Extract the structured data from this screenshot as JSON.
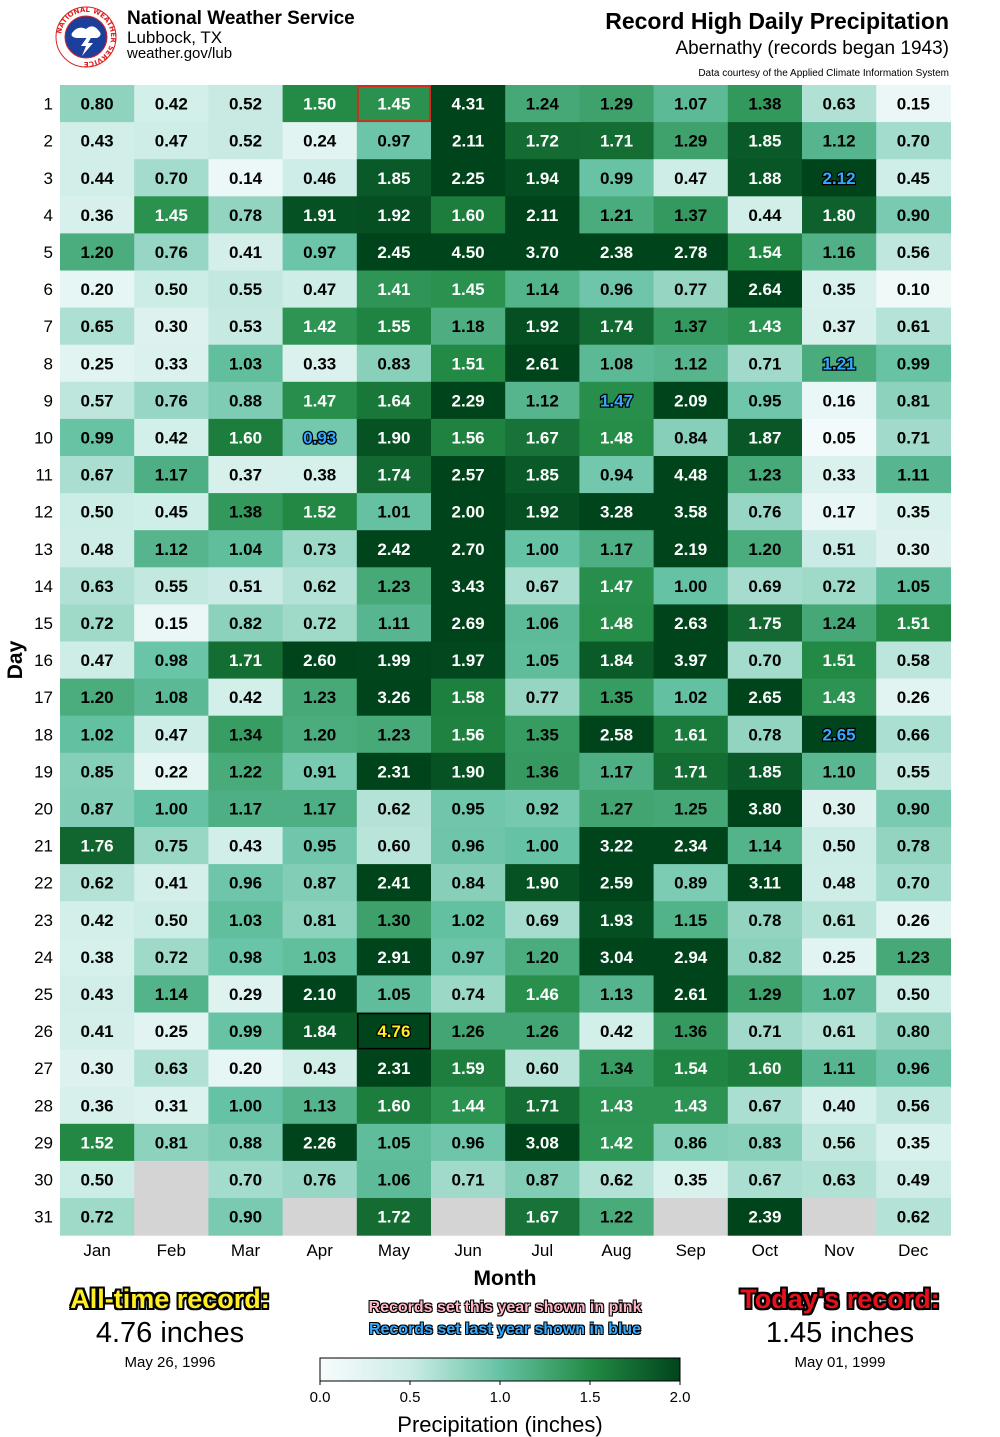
{
  "header": {
    "org_name": "National Weather Service",
    "org_city": "Lubbock, TX",
    "org_url": "weather.gov/lub",
    "logo_ring_text": "NATIONAL WEATHER SERVICE"
  },
  "colors": {
    "highlight_today": "#d42a1f",
    "highlight_alltime": "#000000",
    "record_this_year": "#ffb6c8",
    "record_last_year": "#33aaff",
    "missing_cell": "#d4d4d4"
  },
  "alltime": {
    "label": "All-time record:",
    "value": "4.76 inches",
    "date": "May 26, 1996"
  },
  "today": {
    "label": "Today's record:",
    "value": "1.45 inches",
    "date": "May 01, 1999"
  },
  "legend_notes": {
    "this_year": "Records set this year shown in pink",
    "last_year": "Records set last year shown in blue"
  },
  "chart_data": {
    "type": "heatmap",
    "title": "Record High Daily Precipitation",
    "subtitle": "Abernathy (records began 1943)",
    "source_note": "Data courtesy of the Applied Climate Information System",
    "xlabel": "Month",
    "ylabel": "Day",
    "x": [
      "Jan",
      "Feb",
      "Mar",
      "Apr",
      "May",
      "Jun",
      "Jul",
      "Aug",
      "Sep",
      "Oct",
      "Nov",
      "Dec"
    ],
    "y": [
      "1",
      "2",
      "3",
      "4",
      "5",
      "6",
      "7",
      "8",
      "9",
      "10",
      "11",
      "12",
      "13",
      "14",
      "15",
      "16",
      "17",
      "18",
      "19",
      "20",
      "21",
      "22",
      "23",
      "24",
      "25",
      "26",
      "27",
      "28",
      "29",
      "30",
      "31"
    ],
    "values": [
      [
        "0.80",
        "0.42",
        "0.52",
        "1.50",
        "1.45",
        "4.31",
        "1.24",
        "1.29",
        "1.07",
        "1.38",
        "0.63",
        "0.15"
      ],
      [
        "0.43",
        "0.47",
        "0.52",
        "0.24",
        "0.97",
        "2.11",
        "1.72",
        "1.71",
        "1.29",
        "1.85",
        "1.12",
        "0.70"
      ],
      [
        "0.44",
        "0.70",
        "0.14",
        "0.46",
        "1.85",
        "2.25",
        "1.94",
        "0.99",
        "0.47",
        "1.88",
        "2.12",
        "0.45"
      ],
      [
        "0.36",
        "1.45",
        "0.78",
        "1.91",
        "1.92",
        "1.60",
        "2.11",
        "1.21",
        "1.37",
        "0.44",
        "1.80",
        "0.90"
      ],
      [
        "1.20",
        "0.76",
        "0.41",
        "0.97",
        "2.45",
        "4.50",
        "3.70",
        "2.38",
        "2.78",
        "1.54",
        "1.16",
        "0.56"
      ],
      [
        "0.20",
        "0.50",
        "0.55",
        "0.47",
        "1.41",
        "1.45",
        "1.14",
        "0.96",
        "0.77",
        "2.64",
        "0.35",
        "0.10"
      ],
      [
        "0.65",
        "0.30",
        "0.53",
        "1.42",
        "1.55",
        "1.18",
        "1.92",
        "1.74",
        "1.37",
        "1.43",
        "0.37",
        "0.61"
      ],
      [
        "0.25",
        "0.33",
        "1.03",
        "0.33",
        "0.83",
        "1.51",
        "2.61",
        "1.08",
        "1.12",
        "0.71",
        "1.21",
        "0.99"
      ],
      [
        "0.57",
        "0.76",
        "0.88",
        "1.47",
        "1.64",
        "2.29",
        "1.12",
        "1.47",
        "2.09",
        "0.95",
        "0.16",
        "0.81"
      ],
      [
        "0.99",
        "0.42",
        "1.60",
        "0.93",
        "1.90",
        "1.56",
        "1.67",
        "1.48",
        "0.84",
        "1.87",
        "0.05",
        "0.71"
      ],
      [
        "0.67",
        "1.17",
        "0.37",
        "0.38",
        "1.74",
        "2.57",
        "1.85",
        "0.94",
        "4.48",
        "1.23",
        "0.33",
        "1.11"
      ],
      [
        "0.50",
        "0.45",
        "1.38",
        "1.52",
        "1.01",
        "2.00",
        "1.92",
        "3.28",
        "3.58",
        "0.76",
        "0.17",
        "0.35"
      ],
      [
        "0.48",
        "1.12",
        "1.04",
        "0.73",
        "2.42",
        "2.70",
        "1.00",
        "1.17",
        "2.19",
        "1.20",
        "0.51",
        "0.30"
      ],
      [
        "0.63",
        "0.55",
        "0.51",
        "0.62",
        "1.23",
        "3.43",
        "0.67",
        "1.47",
        "1.00",
        "0.69",
        "0.72",
        "1.05"
      ],
      [
        "0.72",
        "0.15",
        "0.82",
        "0.72",
        "1.11",
        "2.69",
        "1.06",
        "1.48",
        "2.63",
        "1.75",
        "1.24",
        "1.51"
      ],
      [
        "0.47",
        "0.98",
        "1.71",
        "2.60",
        "1.99",
        "1.97",
        "1.05",
        "1.84",
        "3.97",
        "0.70",
        "1.51",
        "0.58"
      ],
      [
        "1.20",
        "1.08",
        "0.42",
        "1.23",
        "3.26",
        "1.58",
        "0.77",
        "1.35",
        "1.02",
        "2.65",
        "1.43",
        "0.26"
      ],
      [
        "1.02",
        "0.47",
        "1.34",
        "1.20",
        "1.23",
        "1.56",
        "1.35",
        "2.58",
        "1.61",
        "0.78",
        "2.65",
        "0.66"
      ],
      [
        "0.85",
        "0.22",
        "1.22",
        "0.91",
        "2.31",
        "1.90",
        "1.36",
        "1.17",
        "1.71",
        "1.85",
        "1.10",
        "0.55"
      ],
      [
        "0.87",
        "1.00",
        "1.17",
        "1.17",
        "0.62",
        "0.95",
        "0.92",
        "1.27",
        "1.25",
        "3.80",
        "0.30",
        "0.90"
      ],
      [
        "1.76",
        "0.75",
        "0.43",
        "0.95",
        "0.60",
        "0.96",
        "1.00",
        "3.22",
        "2.34",
        "1.14",
        "0.50",
        "0.78"
      ],
      [
        "0.62",
        "0.41",
        "0.96",
        "0.87",
        "2.41",
        "0.84",
        "1.90",
        "2.59",
        "0.89",
        "3.11",
        "0.48",
        "0.70"
      ],
      [
        "0.42",
        "0.50",
        "1.03",
        "0.81",
        "1.30",
        "1.02",
        "0.69",
        "1.93",
        "1.15",
        "0.78",
        "0.61",
        "0.26"
      ],
      [
        "0.38",
        "0.72",
        "0.98",
        "1.03",
        "2.91",
        "0.97",
        "1.20",
        "3.04",
        "2.94",
        "0.82",
        "0.25",
        "1.23"
      ],
      [
        "0.43",
        "1.14",
        "0.29",
        "2.10",
        "1.05",
        "0.74",
        "1.46",
        "1.13",
        "2.61",
        "1.29",
        "1.07",
        "0.50"
      ],
      [
        "0.41",
        "0.25",
        "0.99",
        "1.84",
        "4.76",
        "1.26",
        "1.26",
        "0.42",
        "1.36",
        "0.71",
        "0.61",
        "0.80"
      ],
      [
        "0.30",
        "0.63",
        "0.20",
        "0.43",
        "2.31",
        "1.59",
        "0.60",
        "1.34",
        "1.54",
        "1.60",
        "1.11",
        "0.96"
      ],
      [
        "0.36",
        "0.31",
        "1.00",
        "1.13",
        "1.60",
        "1.44",
        "1.71",
        "1.43",
        "1.43",
        "0.67",
        "0.40",
        "0.56"
      ],
      [
        "1.52",
        "0.81",
        "0.88",
        "2.26",
        "1.05",
        "0.96",
        "3.08",
        "1.42",
        "0.86",
        "0.83",
        "0.56",
        "0.35"
      ],
      [
        "0.50",
        null,
        "0.70",
        "0.76",
        "1.06",
        "0.71",
        "0.87",
        "0.62",
        "0.35",
        "0.67",
        "0.63",
        "0.49"
      ],
      [
        "0.72",
        null,
        "0.90",
        null,
        "1.72",
        null,
        "1.67",
        "1.22",
        null,
        "2.39",
        null,
        "0.62"
      ]
    ],
    "last_year_records": [
      [
        2,
        10
      ],
      [
        7,
        10
      ],
      [
        8,
        7
      ],
      [
        9,
        3
      ],
      [
        17,
        10
      ]
    ],
    "this_year_records": [],
    "today_cell": [
      0,
      4
    ],
    "alltime_cell": [
      25,
      4
    ],
    "colorbar": {
      "label": "Precipitation (inches)",
      "range": [
        0.0,
        2.0
      ],
      "ticks": [
        "0.0",
        "0.5",
        "1.0",
        "1.5",
        "2.0"
      ],
      "colors": [
        "#f7fcfd",
        "#ccece6",
        "#66c2a4",
        "#238b45",
        "#00441b"
      ]
    },
    "legend": "none",
    "grid": false
  }
}
